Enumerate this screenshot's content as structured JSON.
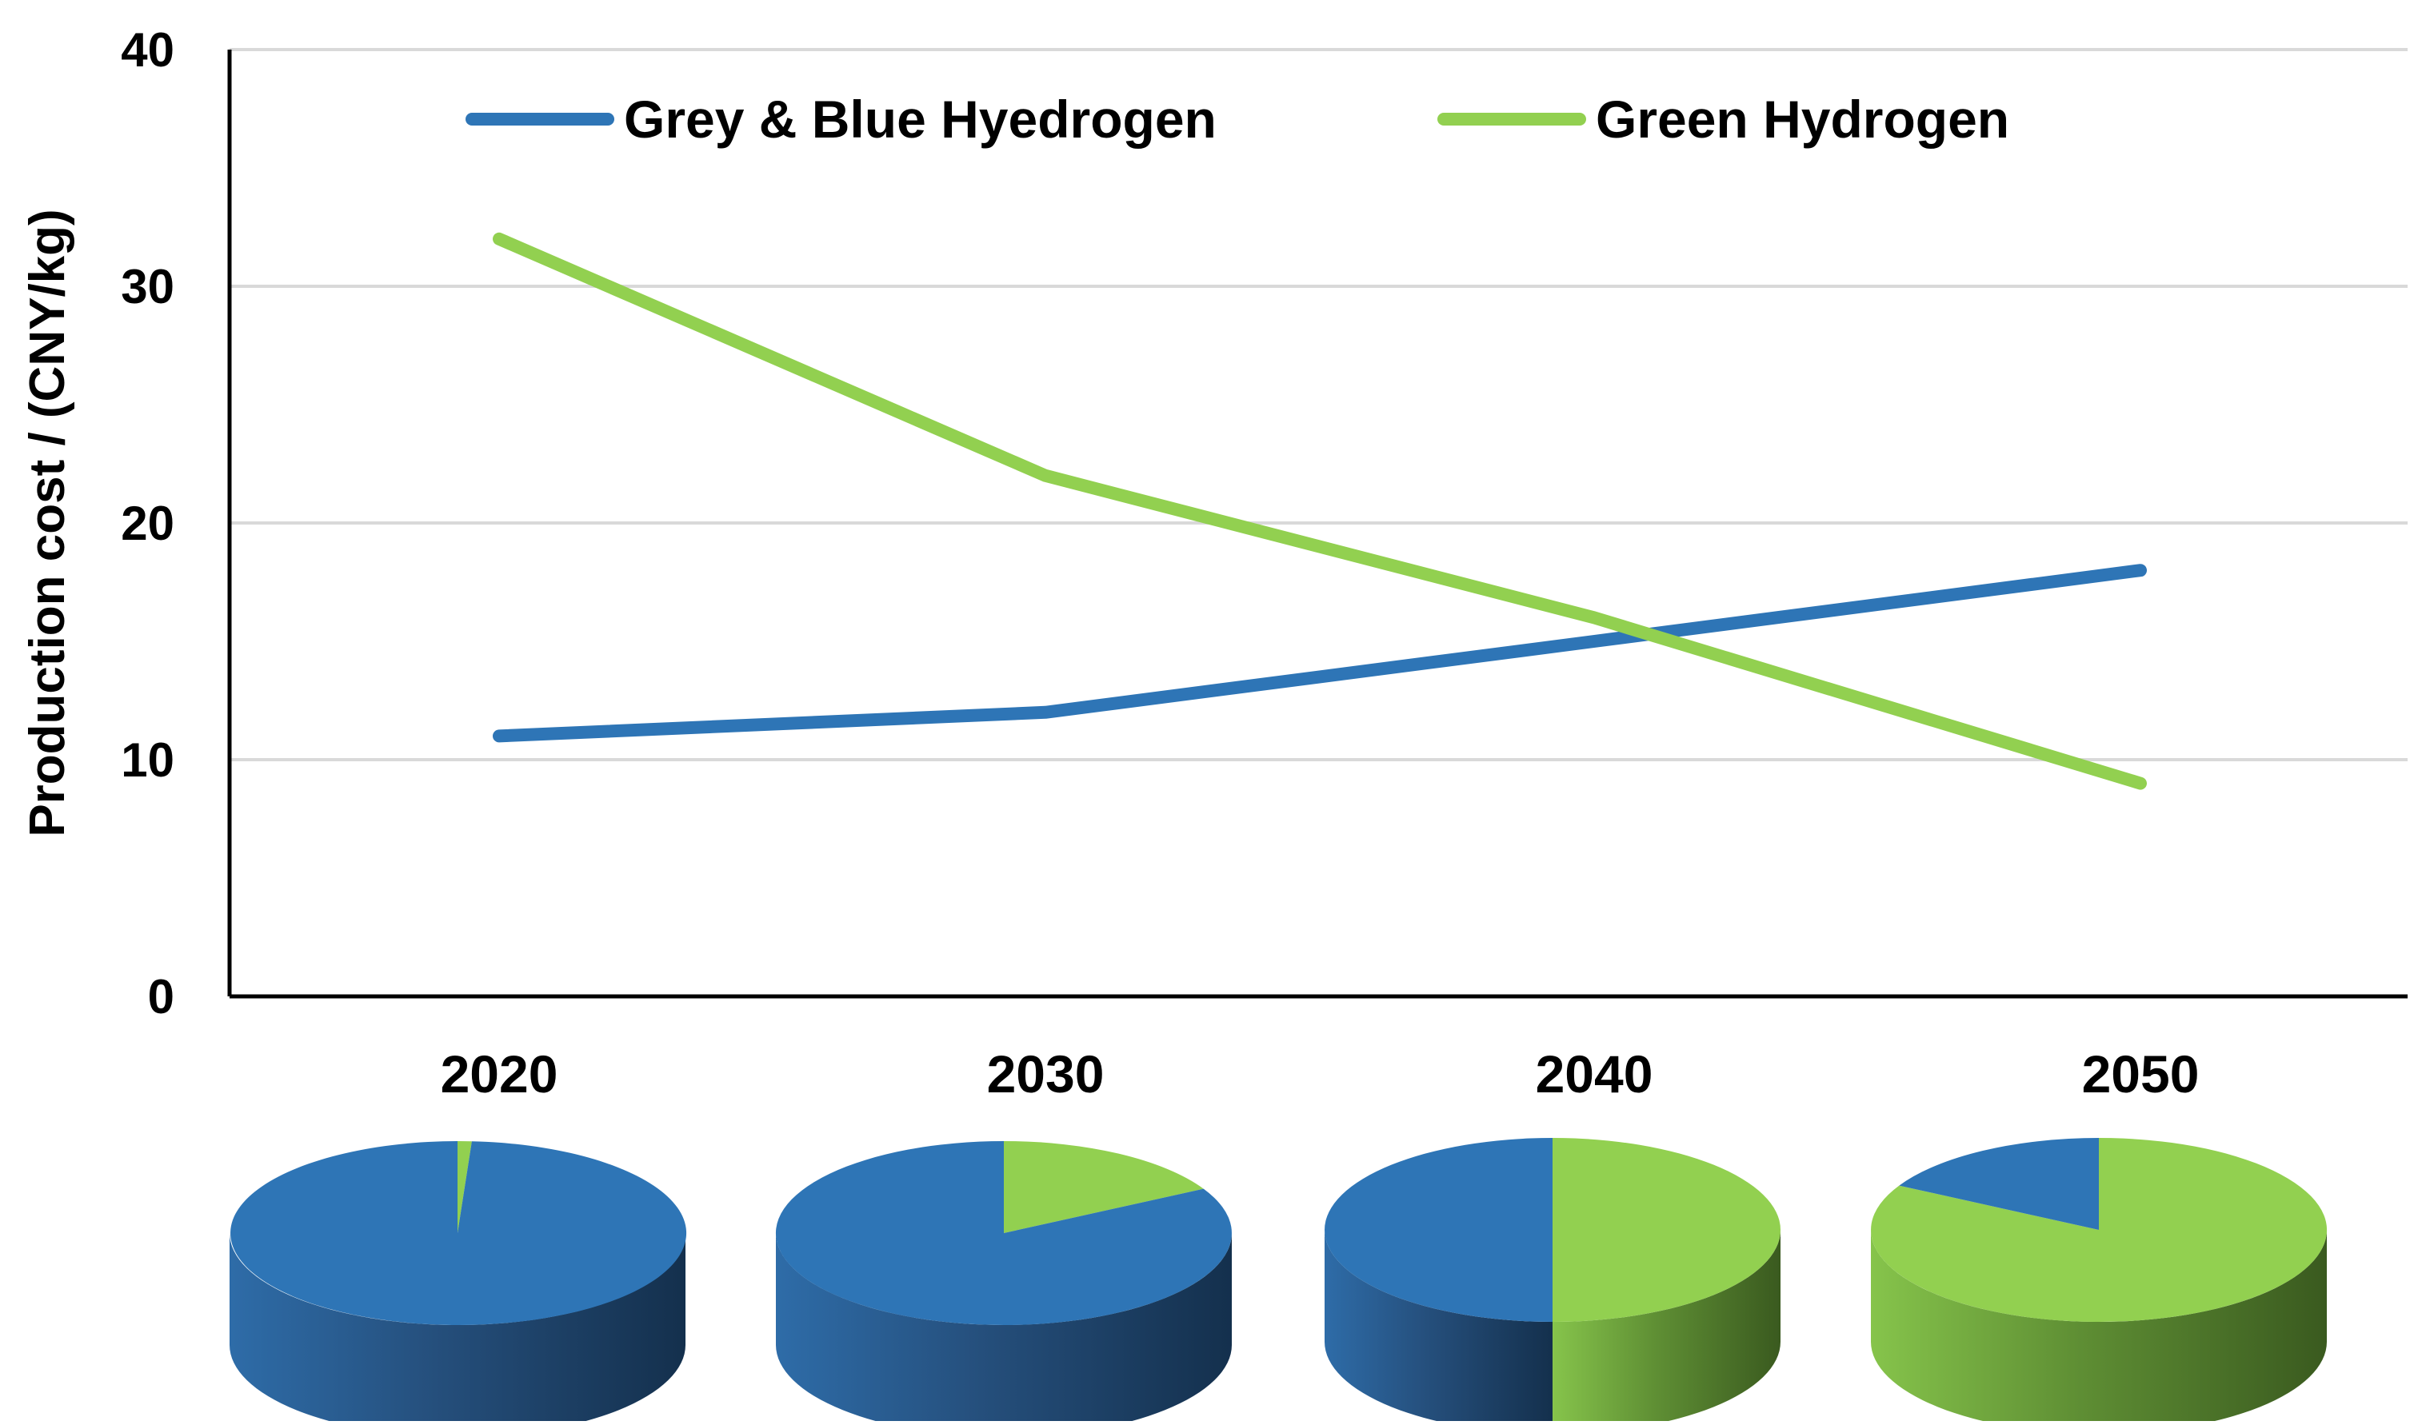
{
  "chart_data": {
    "type": "line",
    "title": "",
    "xlabel": "",
    "ylabel": "Production cost / (CNY/kg)",
    "ylim": [
      0,
      40
    ],
    "yticks": [
      0,
      10,
      20,
      30,
      40
    ],
    "grid": true,
    "legend_position": "top",
    "categories": [
      "2020",
      "2030",
      "2040",
      "2050"
    ],
    "series": [
      {
        "name": "Grey & Blue Hyedrogen",
        "color": "#2e75b6",
        "values": [
          11,
          12,
          15,
          18
        ]
      },
      {
        "name": "Green Hydrogen",
        "color": "#92d050",
        "values": [
          32,
          22,
          16,
          9
        ]
      }
    ],
    "pies": [
      {
        "category": "2020",
        "green_share_percent": 1
      },
      {
        "category": "2030",
        "green_share_percent": 17
      },
      {
        "category": "2040",
        "green_share_percent": 50
      },
      {
        "category": "2050",
        "green_share_percent": 83
      }
    ]
  }
}
